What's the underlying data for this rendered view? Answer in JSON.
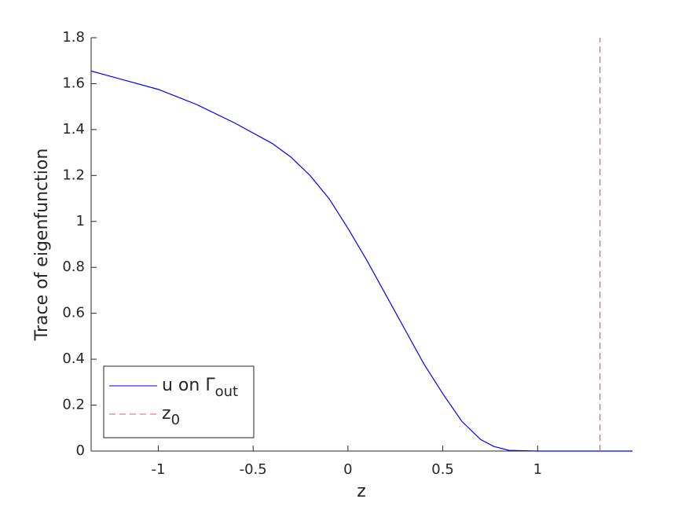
{
  "chart_data": {
    "type": "line",
    "xlabel": "z",
    "ylabel": "Trace of eigenfunction",
    "xlim": [
      -1.354,
      1.5
    ],
    "ylim": [
      0,
      1.8
    ],
    "xticks": [
      -1,
      -0.5,
      0,
      0.5,
      1
    ],
    "yticks": [
      0,
      0.2,
      0.4,
      0.6,
      0.8,
      1,
      1.2,
      1.4,
      1.6,
      1.8
    ],
    "legend": "lower left",
    "series": [
      {
        "name": "u on Γ",
        "name_subscript": "out",
        "color": "#0000ff",
        "style": "solid",
        "x": [
          -1.354,
          -1.2,
          -1.0,
          -0.8,
          -0.6,
          -0.4,
          -0.3,
          -0.2,
          -0.1,
          0,
          0.1,
          0.2,
          0.3,
          0.4,
          0.5,
          0.6,
          0.7,
          0.77,
          0.85,
          1.0,
          1.5
        ],
        "values": [
          1.655,
          1.62,
          1.575,
          1.51,
          1.43,
          1.34,
          1.28,
          1.2,
          1.1,
          0.97,
          0.83,
          0.68,
          0.53,
          0.38,
          0.25,
          0.13,
          0.05,
          0.02,
          0.003,
          0,
          0
        ]
      },
      {
        "name": "z",
        "name_subscript": "0",
        "color": "#e06060",
        "style": "dashed",
        "x": [
          1.329,
          1.329
        ],
        "values": [
          0,
          1.8
        ]
      }
    ]
  }
}
